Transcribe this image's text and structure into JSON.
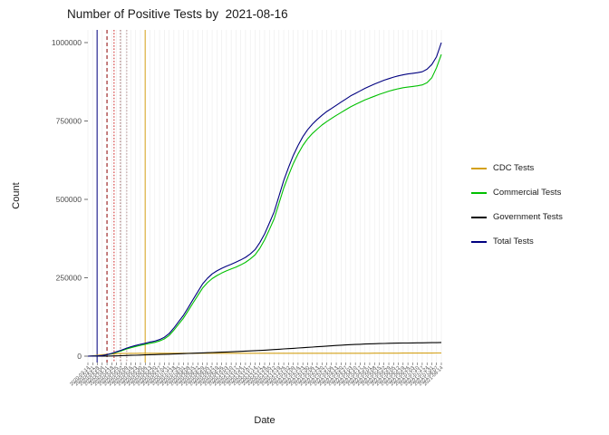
{
  "chart_data": {
    "type": "line",
    "title": "Number of Positive Tests by  2021-08-16",
    "xlabel": "Date",
    "ylabel": "Count",
    "ylim": [
      0,
      1000000
    ],
    "yticks": [
      0,
      250000,
      500000,
      750000,
      1000000
    ],
    "grid": "vertical-light",
    "legend_position": "right",
    "x_dates": [
      "2020-03-14",
      "2020-03-21",
      "2020-03-28",
      "2020-04-04",
      "2020-04-11",
      "2020-04-18",
      "2020-04-25",
      "2020-05-02",
      "2020-05-09",
      "2020-05-16",
      "2020-05-23",
      "2020-05-30",
      "2020-06-06",
      "2020-06-13",
      "2020-06-20",
      "2020-06-27",
      "2020-07-04",
      "2020-07-11",
      "2020-07-18",
      "2020-07-25",
      "2020-08-01",
      "2020-08-08",
      "2020-08-15",
      "2020-08-22",
      "2020-08-29",
      "2020-09-05",
      "2020-09-12",
      "2020-09-19",
      "2020-09-26",
      "2020-10-03",
      "2020-10-10",
      "2020-10-17",
      "2020-10-24",
      "2020-10-31",
      "2020-11-07",
      "2020-11-14",
      "2020-11-21",
      "2020-11-28",
      "2020-12-05",
      "2020-12-12",
      "2020-12-19",
      "2020-12-26",
      "2021-01-02",
      "2021-01-09",
      "2021-01-16",
      "2021-01-23",
      "2021-01-30",
      "2021-02-06",
      "2021-02-13",
      "2021-02-20",
      "2021-02-27",
      "2021-03-06",
      "2021-03-13",
      "2021-03-20",
      "2021-03-27",
      "2021-04-03",
      "2021-04-10",
      "2021-04-17",
      "2021-04-24",
      "2021-05-01",
      "2021-05-08",
      "2021-05-15",
      "2021-05-22",
      "2021-05-29",
      "2021-06-05",
      "2021-06-12",
      "2021-06-19",
      "2021-06-26",
      "2021-07-03",
      "2021-07-10",
      "2021-07-17",
      "2021-07-24",
      "2021-07-31",
      "2021-08-07",
      "2021-08-14"
    ],
    "series": [
      {
        "name": "CDC Tests",
        "color": "#D4A017",
        "values": [
          0,
          1500,
          3000,
          4500,
          6000,
          7000,
          7800,
          8300,
          8700,
          9000,
          9100,
          9150,
          9200,
          9250,
          9300,
          9300,
          9300,
          9300,
          9300,
          9300,
          9300,
          9300,
          9300,
          9300,
          9300,
          9300,
          9300,
          9300,
          9300,
          9300,
          9300,
          9300,
          9300,
          9300,
          9300,
          9300,
          9300,
          9300,
          9300,
          9300,
          9300,
          9300,
          9300,
          9300,
          9300,
          9300,
          9300,
          9300,
          9300,
          9300,
          9300,
          9300,
          9300,
          9300,
          9300,
          9300,
          9300,
          9300,
          9300,
          9300,
          9400,
          9450,
          9500,
          9550,
          9600,
          9650,
          9700,
          9750,
          9800,
          9850,
          9900,
          9925,
          9950,
          9975,
          10000
        ]
      },
      {
        "name": "Commercial Tests",
        "color": "#00C000",
        "values": [
          0,
          400,
          800,
          1600,
          4200,
          8000,
          12500,
          17000,
          22500,
          27000,
          31000,
          34500,
          37500,
          41000,
          44000,
          48500,
          55000,
          66000,
          83000,
          102000,
          121000,
          145000,
          169000,
          193000,
          217000,
          234000,
          247000,
          257000,
          265000,
          272000,
          278000,
          284000,
          291000,
          299000,
          310000,
          323000,
          344000,
          371000,
          404000,
          438000,
          487000,
          536000,
          577000,
          614000,
          645000,
          672000,
          693000,
          710000,
          724000,
          737000,
          748000,
          758000,
          768000,
          777000,
          786000,
          795000,
          803000,
          810000,
          817000,
          823000,
          829000,
          835000,
          840000,
          845000,
          849000,
          853000,
          856000,
          858000,
          860000,
          862000,
          865000,
          872000,
          888000,
          920000,
          962000
        ]
      },
      {
        "name": "Government Tests",
        "color": "#000000",
        "values": [
          0,
          0,
          0,
          0,
          0,
          500,
          1000,
          1500,
          2000,
          2500,
          3000,
          3500,
          4000,
          4500,
          5000,
          5500,
          6000,
          6500,
          7000,
          7500,
          8000,
          8600,
          9200,
          9800,
          10400,
          11000,
          11600,
          12200,
          12800,
          13400,
          14000,
          14700,
          15400,
          16100,
          16800,
          17500,
          18300,
          19100,
          20000,
          21000,
          22000,
          23000,
          24000,
          25000,
          26000,
          27000,
          28000,
          29000,
          30000,
          31000,
          32000,
          33000,
          34000,
          35000,
          35800,
          36600,
          37400,
          38000,
          38600,
          39200,
          39700,
          40100,
          40500,
          40900,
          41200,
          41500,
          41800,
          42000,
          42200,
          42400,
          42600,
          42800,
          43000,
          43200,
          43500
        ]
      },
      {
        "name": "Total Tests",
        "color": "#000080",
        "values": [
          0,
          500,
          1000,
          2000,
          5000,
          9000,
          14000,
          19000,
          25000,
          30000,
          34000,
          38000,
          41000,
          45000,
          48000,
          53000,
          60000,
          72000,
          90000,
          110000,
          130000,
          155000,
          180000,
          205000,
          230000,
          248000,
          262000,
          272000,
          280000,
          287000,
          293000,
          300000,
          307000,
          315000,
          326000,
          340000,
          362000,
          390000,
          425000,
          460000,
          510000,
          560000,
          602000,
          640000,
          672000,
          700000,
          722000,
          740000,
          755000,
          768000,
          780000,
          790000,
          800000,
          810000,
          820000,
          830000,
          838000,
          846000,
          854000,
          861000,
          868000,
          874000,
          880000,
          885000,
          890000,
          894000,
          897000,
          900000,
          902000,
          904000,
          907000,
          915000,
          930000,
          955000,
          1000000
        ]
      }
    ],
    "vlines": [
      {
        "x_frac": 0.026,
        "color": "#000080",
        "style": "solid"
      },
      {
        "x_frac": 0.054,
        "color": "#8B0000",
        "style": "dashed"
      },
      {
        "x_frac": 0.074,
        "color": "#CC2222",
        "style": "dotted"
      },
      {
        "x_frac": 0.092,
        "color": "#996666",
        "style": "dotted"
      },
      {
        "x_frac": 0.11,
        "color": "#BB9999",
        "style": "dotted"
      },
      {
        "x_frac": 0.162,
        "color": "#D4A017",
        "style": "solid"
      }
    ]
  }
}
